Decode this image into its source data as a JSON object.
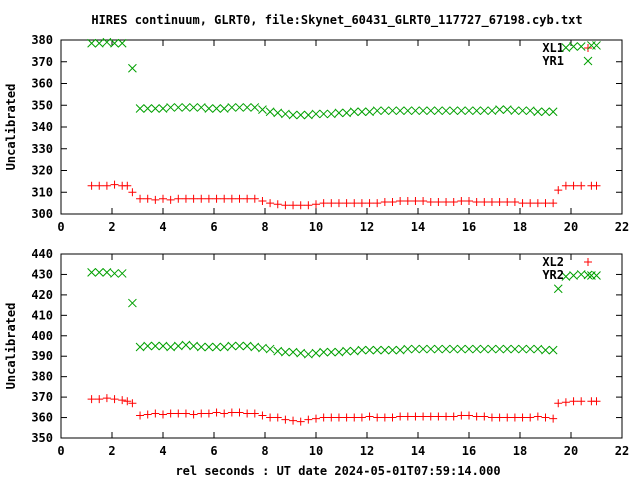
{
  "title": "HIRES continuum, GLRT0, file:Skynet_60431_GLRT0_117727_67198.cyb.txt",
  "xlabel": "rel seconds : UT date 2024-05-01T07:59:14.000",
  "colors": {
    "red": "#ff0000",
    "green": "#00a000",
    "axis": "#000000"
  },
  "chart_data": [
    {
      "type": "scatter",
      "ylabel": "Uncalibrated",
      "xlim": [
        0,
        22
      ],
      "ylim": [
        300,
        380
      ],
      "xticks": [
        0,
        2,
        4,
        6,
        8,
        10,
        12,
        14,
        16,
        18,
        20,
        22
      ],
      "yticks": [
        300,
        310,
        320,
        330,
        340,
        350,
        360,
        370,
        380
      ],
      "legend_position": "top-right",
      "series": [
        {
          "name": "XL1",
          "marker": "plus",
          "color": "#ff0000",
          "x": [
            1.2,
            1.5,
            1.8,
            2.1,
            2.4,
            2.6,
            2.8,
            3.1,
            3.4,
            3.7,
            4.0,
            4.3,
            4.6,
            4.9,
            5.2,
            5.5,
            5.8,
            6.1,
            6.4,
            6.7,
            7.0,
            7.3,
            7.6,
            7.9,
            8.2,
            8.5,
            8.8,
            9.1,
            9.4,
            9.7,
            10.0,
            10.3,
            10.6,
            10.9,
            11.2,
            11.5,
            11.8,
            12.1,
            12.4,
            12.7,
            13.0,
            13.3,
            13.6,
            13.9,
            14.2,
            14.5,
            14.8,
            15.1,
            15.4,
            15.7,
            16.0,
            16.3,
            16.6,
            16.9,
            17.2,
            17.5,
            17.8,
            18.1,
            18.4,
            18.7,
            19.0,
            19.3,
            19.5,
            19.8,
            20.1,
            20.4,
            20.8,
            21.0
          ],
          "y": [
            313,
            313,
            313,
            313.5,
            313,
            313,
            310,
            307,
            307,
            306.5,
            307,
            306.5,
            307,
            307,
            307,
            307,
            307,
            307,
            307,
            307,
            307,
            307,
            307,
            306,
            305,
            304.5,
            304,
            304,
            304,
            304,
            304.5,
            305,
            305,
            305,
            305,
            305,
            305,
            305,
            305,
            305.5,
            305.5,
            306,
            306,
            306,
            306,
            305.5,
            305.5,
            305.5,
            305.5,
            306,
            306,
            305.5,
            305.5,
            305.5,
            305.5,
            305.5,
            305.5,
            305,
            305,
            305,
            305,
            305,
            311,
            313,
            313,
            313,
            313,
            313
          ]
        },
        {
          "name": "YR1",
          "marker": "cross",
          "color": "#00a000",
          "x": [
            1.2,
            1.5,
            1.8,
            2.1,
            2.4,
            2.8,
            3.1,
            3.4,
            3.7,
            4.0,
            4.3,
            4.6,
            4.9,
            5.2,
            5.5,
            5.8,
            6.1,
            6.4,
            6.7,
            7.0,
            7.3,
            7.6,
            7.9,
            8.2,
            8.5,
            8.8,
            9.1,
            9.4,
            9.7,
            10.0,
            10.3,
            10.6,
            10.9,
            11.2,
            11.5,
            11.8,
            12.1,
            12.4,
            12.7,
            13.0,
            13.3,
            13.6,
            13.9,
            14.2,
            14.5,
            14.8,
            15.1,
            15.4,
            15.7,
            16.0,
            16.3,
            16.6,
            16.9,
            17.2,
            17.5,
            17.8,
            18.1,
            18.4,
            18.7,
            19.0,
            19.3,
            19.8,
            20.1,
            20.4,
            20.8,
            21.0
          ],
          "y": [
            378.5,
            378.5,
            379,
            378.5,
            378.5,
            367,
            348.5,
            348.5,
            348.5,
            348.5,
            349,
            349,
            349,
            349,
            349,
            348.5,
            348.5,
            348.5,
            349,
            349,
            349,
            349,
            348,
            347,
            346.5,
            346,
            345.5,
            345.5,
            345.5,
            346,
            346,
            346,
            346.5,
            346.5,
            347,
            347,
            347,
            347.5,
            347.5,
            347.5,
            347.5,
            347.5,
            347.5,
            347.5,
            347.5,
            347.5,
            347.5,
            347.5,
            347.5,
            347.5,
            347.5,
            347.5,
            347.5,
            348,
            348,
            347.5,
            347.5,
            347.5,
            347,
            347,
            347,
            376.5,
            377,
            377,
            377.5,
            377.5
          ]
        }
      ]
    },
    {
      "type": "scatter",
      "ylabel": "Uncalibrated",
      "xlim": [
        0,
        22
      ],
      "ylim": [
        350,
        440
      ],
      "xticks": [
        0,
        2,
        4,
        6,
        8,
        10,
        12,
        14,
        16,
        18,
        20,
        22
      ],
      "yticks": [
        350,
        360,
        370,
        380,
        390,
        400,
        410,
        420,
        430,
        440
      ],
      "legend_position": "top-right",
      "series": [
        {
          "name": "XL2",
          "marker": "plus",
          "color": "#ff0000",
          "x": [
            1.2,
            1.5,
            1.8,
            2.1,
            2.4,
            2.6,
            2.8,
            3.1,
            3.4,
            3.7,
            4.0,
            4.3,
            4.6,
            4.9,
            5.2,
            5.5,
            5.8,
            6.1,
            6.4,
            6.7,
            7.0,
            7.3,
            7.6,
            7.9,
            8.2,
            8.5,
            8.8,
            9.1,
            9.4,
            9.7,
            10.0,
            10.3,
            10.6,
            10.9,
            11.2,
            11.5,
            11.8,
            12.1,
            12.4,
            12.7,
            13.0,
            13.3,
            13.6,
            13.9,
            14.2,
            14.5,
            14.8,
            15.1,
            15.4,
            15.7,
            16.0,
            16.3,
            16.6,
            16.9,
            17.2,
            17.5,
            17.8,
            18.1,
            18.4,
            18.7,
            19.0,
            19.3,
            19.5,
            19.8,
            20.1,
            20.4,
            20.8,
            21.0
          ],
          "y": [
            369,
            369,
            369.5,
            369,
            368.5,
            368,
            367,
            361,
            361.5,
            362,
            361.5,
            362,
            362,
            362,
            361.5,
            362,
            362,
            362.5,
            362,
            362.5,
            362.5,
            362,
            362,
            361,
            360,
            360,
            359,
            358.5,
            358,
            359,
            359.5,
            360,
            360,
            360,
            360,
            360,
            360,
            360.5,
            360,
            360,
            360,
            360.5,
            360.5,
            360.5,
            360.5,
            360.5,
            360.5,
            360.5,
            360.5,
            361,
            361,
            360.5,
            360.5,
            360,
            360,
            360,
            360,
            360,
            360,
            360.5,
            360,
            359.5,
            367,
            367.5,
            368,
            368,
            368,
            368
          ]
        },
        {
          "name": "YR2",
          "marker": "cross",
          "color": "#00a000",
          "x": [
            1.2,
            1.5,
            1.8,
            2.1,
            2.4,
            2.8,
            3.1,
            3.4,
            3.7,
            4.0,
            4.3,
            4.6,
            4.9,
            5.2,
            5.5,
            5.8,
            6.1,
            6.4,
            6.7,
            7.0,
            7.3,
            7.6,
            7.9,
            8.2,
            8.5,
            8.8,
            9.1,
            9.4,
            9.7,
            10.0,
            10.3,
            10.6,
            10.9,
            11.2,
            11.5,
            11.8,
            12.1,
            12.4,
            12.7,
            13.0,
            13.3,
            13.6,
            13.9,
            14.2,
            14.5,
            14.8,
            15.1,
            15.4,
            15.7,
            16.0,
            16.3,
            16.6,
            16.9,
            17.2,
            17.5,
            17.8,
            18.1,
            18.4,
            18.7,
            19.0,
            19.3,
            19.5,
            19.8,
            20.1,
            20.4,
            20.8,
            21.0
          ],
          "y": [
            431,
            431,
            431,
            430.5,
            430.5,
            416,
            394.5,
            395,
            395,
            395,
            394.5,
            395,
            395.5,
            395,
            394.5,
            394.5,
            394.5,
            394.5,
            395,
            395,
            395,
            394.5,
            394,
            393.5,
            392.5,
            392,
            392,
            391.5,
            391,
            391.5,
            392,
            392,
            392,
            392.5,
            392.5,
            393,
            393,
            393,
            393,
            393,
            393,
            393.5,
            393.5,
            393.5,
            393.5,
            393.5,
            393.5,
            393.5,
            393.5,
            393.5,
            393.5,
            393.5,
            393.5,
            393.5,
            393.5,
            393.5,
            393.5,
            393.5,
            393.5,
            393,
            393,
            423,
            429,
            429.5,
            430,
            429.5,
            429.5
          ]
        }
      ]
    }
  ]
}
